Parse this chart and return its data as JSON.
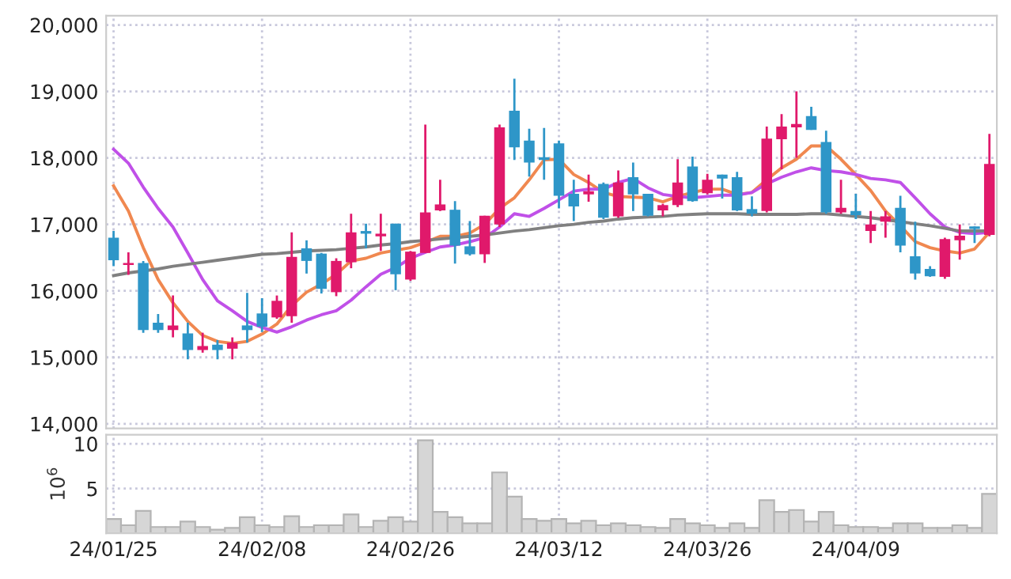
{
  "chart_data": [
    {
      "type": "candlestick",
      "categories": [
        null,
        null,
        null,
        null,
        null,
        null,
        null,
        null,
        null,
        null,
        null,
        null,
        null,
        null,
        null,
        null,
        null,
        null,
        null,
        null,
        null,
        null,
        null,
        null,
        null,
        null,
        null,
        null,
        null,
        null,
        null,
        null,
        null,
        null,
        null,
        null,
        null,
        null,
        null,
        null,
        null,
        null,
        null,
        null,
        null,
        null,
        null,
        null,
        null,
        null,
        null,
        null,
        null,
        null,
        null,
        null,
        null,
        null,
        null,
        null
      ],
      "ohlc": [
        [
          16800,
          16900,
          16370,
          16460
        ],
        [
          16390,
          16580,
          16240,
          16420
        ],
        [
          16420,
          16450,
          15370,
          15410
        ],
        [
          15520,
          15650,
          15370,
          15410
        ],
        [
          15410,
          15930,
          15300,
          15480
        ],
        [
          15360,
          15520,
          14970,
          15110
        ],
        [
          15110,
          15370,
          15070,
          15170
        ],
        [
          15190,
          15260,
          14970,
          15110
        ],
        [
          15130,
          15300,
          14970,
          15220
        ],
        [
          15480,
          15970,
          15220,
          15410
        ],
        [
          15660,
          15890,
          15380,
          15460
        ],
        [
          15600,
          15930,
          15580,
          15850
        ],
        [
          15620,
          16880,
          15520,
          16510
        ],
        [
          16640,
          16760,
          16260,
          16450
        ],
        [
          16560,
          16570,
          15960,
          16030
        ],
        [
          15980,
          16490,
          15920,
          16450
        ],
        [
          16430,
          17160,
          16340,
          16880
        ],
        [
          16900,
          17010,
          16640,
          16860
        ],
        [
          16820,
          17160,
          16600,
          16860
        ],
        [
          17010,
          17010,
          16010,
          16250
        ],
        [
          16170,
          16600,
          16150,
          16590
        ],
        [
          16570,
          18500,
          16570,
          17180
        ],
        [
          17210,
          17670,
          17200,
          17300
        ],
        [
          17220,
          17350,
          16410,
          16680
        ],
        [
          16670,
          17050,
          16530,
          16550
        ],
        [
          16550,
          17130,
          16420,
          17130
        ],
        [
          17000,
          18500,
          16960,
          18460
        ],
        [
          18710,
          19190,
          17970,
          18160
        ],
        [
          18260,
          18440,
          17720,
          17930
        ],
        [
          18010,
          18450,
          17670,
          17970
        ],
        [
          18220,
          18260,
          17240,
          17430
        ],
        [
          17460,
          17670,
          17050,
          17270
        ],
        [
          17450,
          17750,
          17340,
          17500
        ],
        [
          17610,
          17630,
          17080,
          17100
        ],
        [
          17120,
          17810,
          17100,
          17630
        ],
        [
          17710,
          17930,
          17200,
          17450
        ],
        [
          17460,
          17460,
          17120,
          17130
        ],
        [
          17210,
          17310,
          17120,
          17290
        ],
        [
          17290,
          17980,
          17260,
          17630
        ],
        [
          17870,
          18020,
          17340,
          17350
        ],
        [
          17470,
          17760,
          17450,
          17670
        ],
        [
          17750,
          17750,
          17390,
          17690
        ],
        [
          17710,
          17790,
          17200,
          17210
        ],
        [
          17230,
          17420,
          17120,
          17160
        ],
        [
          17200,
          18470,
          17180,
          18290
        ],
        [
          18280,
          18660,
          17830,
          18470
        ],
        [
          18460,
          19000,
          18000,
          18510
        ],
        [
          18630,
          18770,
          18420,
          18420
        ],
        [
          18240,
          18410,
          17160,
          17180
        ],
        [
          17180,
          17670,
          17160,
          17250
        ],
        [
          17200,
          17460,
          17080,
          17140
        ],
        [
          16900,
          17200,
          16720,
          17000
        ],
        [
          17040,
          17200,
          16800,
          17120
        ],
        [
          17250,
          17430,
          16580,
          16680
        ],
        [
          16520,
          17040,
          16170,
          16260
        ],
        [
          16330,
          16370,
          16210,
          16220
        ],
        [
          16210,
          16800,
          16180,
          16780
        ],
        [
          16760,
          17000,
          16470,
          16830
        ],
        [
          16970,
          16970,
          16720,
          16930
        ],
        [
          16840,
          18360,
          16820,
          17910
        ]
      ],
      "colors": [
        "#2e96c8",
        "#e0196b",
        "#2e96c8",
        "#2e96c8",
        "#e0196b",
        "#2e96c8",
        "#e0196b",
        "#2e96c8",
        "#e0196b",
        "#2e96c8",
        "#2e96c8",
        "#e0196b",
        "#e0196b",
        "#2e96c8",
        "#2e96c8",
        "#e0196b",
        "#e0196b",
        "#2e96c8",
        "#e0196b",
        "#2e96c8",
        "#e0196b",
        "#e0196b",
        "#e0196b",
        "#2e96c8",
        "#2e96c8",
        "#e0196b",
        "#e0196b",
        "#2e96c8",
        "#2e96c8",
        "#2e96c8",
        "#2e96c8",
        "#2e96c8",
        "#e0196b",
        "#2e96c8",
        "#e0196b",
        "#2e96c8",
        "#2e96c8",
        "#e0196b",
        "#e0196b",
        "#2e96c8",
        "#e0196b",
        "#2e96c8",
        "#2e96c8",
        "#2e96c8",
        "#e0196b",
        "#e0196b",
        "#e0196b",
        "#2e96c8",
        "#2e96c8",
        "#e0196b",
        "#2e96c8",
        "#e0196b",
        "#e0196b",
        "#2e96c8",
        "#2e96c8",
        "#2e96c8",
        "#e0196b",
        "#e0196b",
        "#2e96c8",
        "#e0196b"
      ],
      "series": [
        {
          "type": "line",
          "color": "#f08850",
          "values": [
            17580,
            17200,
            16650,
            16170,
            15820,
            15540,
            15330,
            15240,
            15210,
            15240,
            15350,
            15500,
            15780,
            15980,
            16100,
            16250,
            16450,
            16490,
            16570,
            16610,
            16650,
            16730,
            16820,
            16820,
            16870,
            17000,
            17240,
            17400,
            17670,
            17970,
            17980,
            17750,
            17630,
            17480,
            17420,
            17410,
            17400,
            17340,
            17420,
            17480,
            17530,
            17530,
            17450,
            17480,
            17670,
            17850,
            17980,
            18180,
            18180,
            17980,
            17750,
            17510,
            17200,
            16980,
            16740,
            16650,
            16600,
            16570,
            16630,
            16880
          ]
        },
        {
          "type": "line",
          "color": "#c050e8",
          "values": [
            18130,
            17920,
            17560,
            17240,
            16960,
            16570,
            16170,
            15850,
            15700,
            15540,
            15450,
            15380,
            15460,
            15560,
            15640,
            15700,
            15860,
            16060,
            16250,
            16350,
            16490,
            16580,
            16660,
            16690,
            16740,
            16800,
            16960,
            17160,
            17120,
            17240,
            17370,
            17500,
            17530,
            17530,
            17630,
            17690,
            17550,
            17450,
            17420,
            17400,
            17420,
            17440,
            17440,
            17480,
            17610,
            17710,
            17790,
            17850,
            17810,
            17790,
            17750,
            17690,
            17670,
            17630,
            17400,
            17160,
            16960,
            16880,
            16860,
            16880
          ]
        },
        {
          "type": "line",
          "color": "#808080",
          "values": [
            16230,
            16270,
            16300,
            16330,
            16370,
            16400,
            16430,
            16460,
            16490,
            16520,
            16550,
            16560,
            16580,
            16600,
            16610,
            16620,
            16640,
            16660,
            16690,
            16710,
            16740,
            16760,
            16780,
            16800,
            16820,
            16840,
            16870,
            16900,
            16920,
            16950,
            16980,
            17000,
            17030,
            17050,
            17080,
            17100,
            17110,
            17120,
            17140,
            17150,
            17160,
            17160,
            17160,
            17150,
            17150,
            17150,
            17150,
            17160,
            17160,
            17140,
            17120,
            17100,
            17070,
            17040,
            17010,
            16980,
            16940,
            16900,
            16900,
            16900
          ]
        }
      ],
      "ylim": [
        13930,
        20140
      ],
      "yticks": [
        {
          "value": 14000,
          "label": "14,000"
        },
        {
          "value": 15000,
          "label": "15,000"
        },
        {
          "value": 16000,
          "label": "16,000"
        },
        {
          "value": 17000,
          "label": "17,000"
        },
        {
          "value": 18000,
          "label": "18,000"
        },
        {
          "value": 19000,
          "label": "19,000"
        },
        {
          "value": 20000,
          "label": "20,000"
        }
      ],
      "tick_labels": "y",
      "grid": true,
      "marker": "none",
      "line_style": "solid"
    },
    {
      "type": "bar",
      "categories": [
        "24/01/25",
        null,
        null,
        null,
        null,
        null,
        null,
        null,
        null,
        null,
        "24/02/08",
        null,
        null,
        null,
        null,
        null,
        null,
        null,
        null,
        null,
        "24/02/26",
        null,
        null,
        null,
        null,
        null,
        null,
        null,
        null,
        null,
        "24/03/12",
        null,
        null,
        null,
        null,
        null,
        null,
        null,
        null,
        null,
        "24/03/26",
        null,
        null,
        null,
        null,
        null,
        null,
        null,
        null,
        null,
        "24/04/09",
        null,
        null,
        null,
        null,
        null,
        null,
        null,
        null,
        null
      ],
      "values": [
        1.6,
        0.9,
        2.5,
        0.7,
        0.7,
        1.3,
        0.7,
        0.4,
        0.6,
        1.8,
        0.9,
        0.7,
        1.9,
        0.7,
        0.9,
        0.9,
        2.1,
        0.7,
        1.4,
        1.8,
        1.3,
        10.4,
        2.4,
        1.8,
        1.1,
        1.1,
        6.8,
        4.1,
        1.6,
        1.4,
        1.6,
        1.1,
        1.4,
        0.9,
        1.1,
        0.9,
        0.7,
        0.6,
        1.6,
        1.1,
        0.9,
        0.6,
        1.1,
        0.6,
        3.7,
        2.4,
        2.6,
        1.3,
        2.4,
        0.9,
        0.7,
        0.7,
        0.6,
        1.1,
        1.1,
        0.6,
        0.6,
        0.9,
        0.6,
        4.4
      ],
      "color": "#d6d6d6",
      "ylabel": "10$^{6}$",
      "ylim": [
        0,
        11
      ],
      "yticks": [
        5,
        10
      ],
      "grid": true
    }
  ]
}
